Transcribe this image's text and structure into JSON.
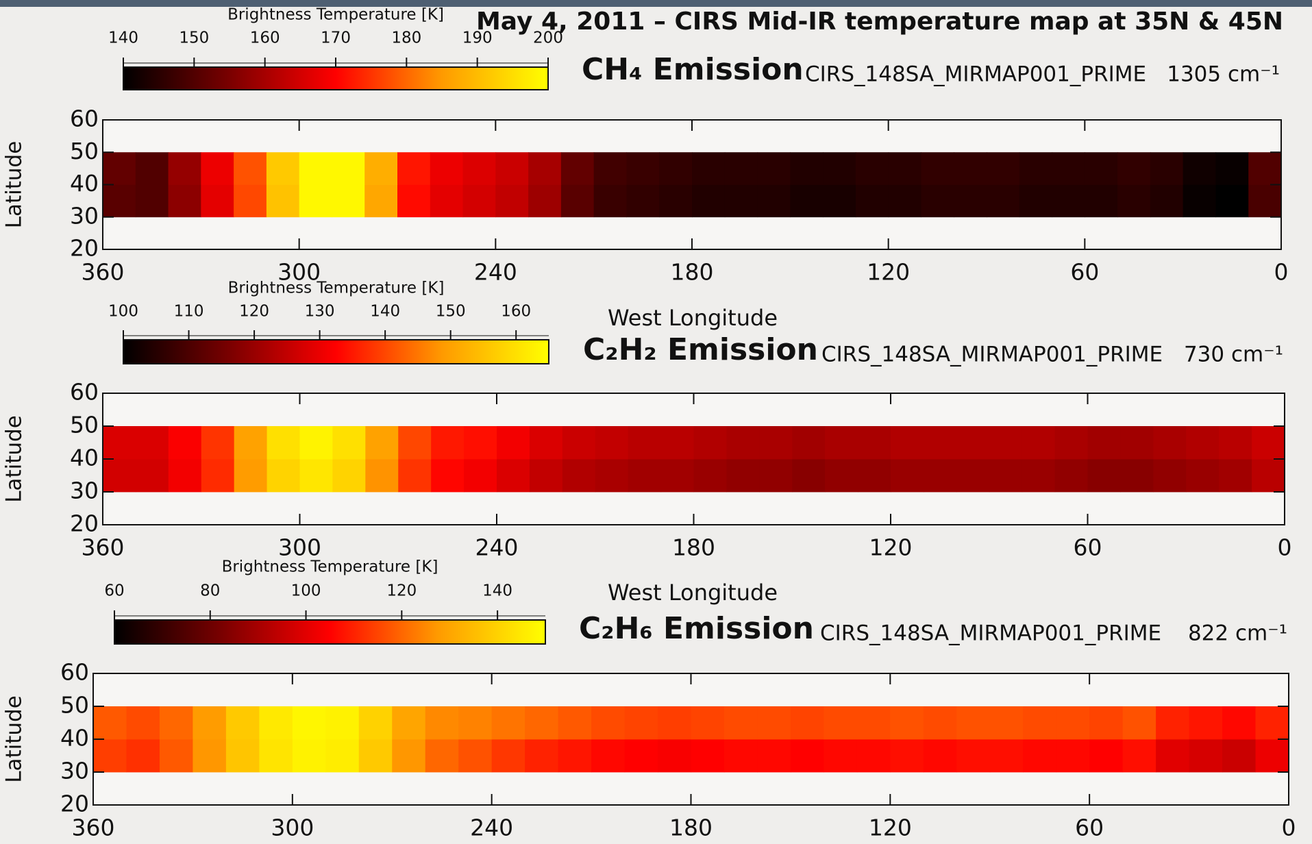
{
  "title": "May 4, 2011 – CIRS Mid-IR temperature map at 35N & 45N",
  "chart_data": [
    {
      "type": "heatmap",
      "title": "CH₄ Emission",
      "observation": "CIRS_148SA_MIRMAP001_PRIME",
      "wavenumber": "1305 cm⁻¹",
      "colorbar_label": "Brightness Temperature [K]",
      "colorlim": [
        140,
        200
      ],
      "colorticks": [
        140,
        150,
        160,
        170,
        180,
        190,
        200
      ],
      "colormap": [
        "#000000",
        "#7a0000",
        "#ff0000",
        "#ff9a00",
        "#ffff00"
      ],
      "xlabel": "West Longitude",
      "ylabel": "Latitude",
      "xlim": [
        360,
        0
      ],
      "ylim": [
        20,
        60
      ],
      "xticks": [
        360,
        300,
        240,
        180,
        120,
        60,
        0
      ],
      "yticks": [
        20,
        30,
        40,
        50,
        60
      ],
      "x": [
        355,
        345,
        335,
        325,
        315,
        305,
        295,
        285,
        275,
        265,
        255,
        245,
        235,
        225,
        215,
        205,
        195,
        185,
        175,
        165,
        155,
        145,
        135,
        125,
        115,
        105,
        95,
        85,
        75,
        65,
        55,
        45,
        35,
        25,
        15,
        5
      ],
      "y": [
        35,
        45
      ],
      "values": [
        [
          151,
          150,
          157,
          167,
          177,
          191,
          199,
          199,
          187,
          171,
          167,
          165,
          163,
          159,
          151,
          147,
          146,
          145,
          144,
          144,
          144,
          143,
          143,
          144,
          144,
          145,
          145,
          145,
          144,
          144,
          144,
          145,
          144,
          141,
          140,
          149
        ],
        [
          152,
          150,
          158,
          168,
          178,
          192,
          199,
          199,
          188,
          172,
          168,
          166,
          164,
          160,
          152,
          148,
          147,
          146,
          145,
          145,
          145,
          144,
          144,
          145,
          145,
          146,
          146,
          146,
          145,
          145,
          145,
          146,
          145,
          142,
          141,
          150
        ]
      ]
    },
    {
      "type": "heatmap",
      "title": "C₂H₂ Emission",
      "observation": "CIRS_148SA_MIRMAP001_PRIME",
      "wavenumber": "730 cm⁻¹",
      "colorbar_label": "Brightness Temperature [K]",
      "colorlim": [
        100,
        165
      ],
      "colorticks": [
        100,
        110,
        120,
        130,
        140,
        150,
        160
      ],
      "colormap": [
        "#000000",
        "#7a0000",
        "#ff0000",
        "#ff9a00",
        "#ffff00"
      ],
      "xlabel": "West Longitude",
      "ylabel": "Latitude",
      "xlim": [
        360,
        0
      ],
      "ylim": [
        20,
        60
      ],
      "xticks": [
        360,
        300,
        240,
        180,
        120,
        60,
        0
      ],
      "yticks": [
        20,
        30,
        40,
        50,
        60
      ],
      "x": [
        355,
        345,
        335,
        325,
        315,
        305,
        295,
        285,
        275,
        265,
        255,
        245,
        235,
        225,
        215,
        205,
        195,
        185,
        175,
        165,
        155,
        145,
        135,
        125,
        115,
        105,
        95,
        85,
        75,
        65,
        55,
        45,
        35,
        25,
        15,
        5
      ],
      "y": [
        35,
        45
      ],
      "values": [
        [
          127,
          127,
          131,
          137,
          149,
          158,
          161,
          158,
          148,
          138,
          133,
          131,
          128,
          125,
          123,
          122,
          121,
          121,
          120,
          119,
          119,
          118,
          119,
          119,
          120,
          120,
          120,
          120,
          120,
          119,
          118,
          118,
          119,
          120,
          121,
          124
        ],
        [
          128,
          128,
          132,
          138,
          150,
          160,
          163,
          160,
          150,
          140,
          135,
          134,
          131,
          128,
          126,
          125,
          124,
          124,
          123,
          122,
          122,
          121,
          122,
          122,
          123,
          123,
          123,
          123,
          123,
          122,
          121,
          121,
          122,
          123,
          124,
          126
        ]
      ]
    },
    {
      "type": "heatmap",
      "title": "C₂H₆ Emission",
      "observation": "CIRS_148SA_MIRMAP001_PRIME",
      "wavenumber": "822 cm⁻¹",
      "colorbar_label": "Brightness Temperature [K]",
      "colorlim": [
        60,
        150
      ],
      "colorticks": [
        60,
        80,
        100,
        120,
        140
      ],
      "colormap": [
        "#000000",
        "#7a0000",
        "#ff0000",
        "#ff9a00",
        "#ffff00"
      ],
      "ylabel": "Latitude",
      "xlim": [
        360,
        0
      ],
      "ylim": [
        20,
        60
      ],
      "xticks": [
        360,
        300,
        240,
        180,
        120,
        60,
        0
      ],
      "yticks": [
        20,
        30,
        40,
        50,
        60
      ],
      "x": [
        355,
        345,
        335,
        325,
        315,
        305,
        295,
        285,
        275,
        265,
        255,
        245,
        235,
        225,
        215,
        205,
        195,
        185,
        175,
        165,
        155,
        145,
        135,
        125,
        115,
        105,
        95,
        85,
        75,
        65,
        55,
        45,
        35,
        25,
        15,
        5
      ],
      "y": [
        35,
        45
      ],
      "values": [
        [
          114,
          112,
          118,
          127,
          137,
          144,
          147,
          146,
          138,
          127,
          120,
          117,
          113,
          110,
          108,
          106,
          105,
          104,
          105,
          106,
          106,
          105,
          106,
          106,
          107,
          106,
          107,
          107,
          106,
          106,
          105,
          107,
          100,
          98,
          96,
          102
        ],
        [
          118,
          116,
          120,
          128,
          138,
          145,
          148,
          147,
          140,
          130,
          125,
          124,
          122,
          120,
          118,
          116,
          115,
          114,
          115,
          116,
          116,
          115,
          116,
          116,
          117,
          116,
          117,
          117,
          116,
          116,
          115,
          117,
          110,
          108,
          106,
          110
        ]
      ]
    }
  ]
}
